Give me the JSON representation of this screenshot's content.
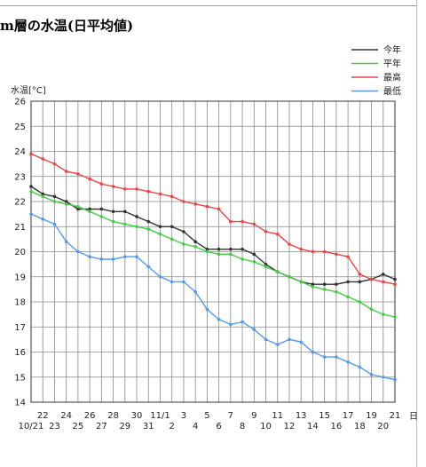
{
  "page": {
    "title": "m層の水温(日平均値)"
  },
  "chart_data": {
    "type": "line",
    "ylabel": "水温[°C]",
    "xlabel": "日",
    "ylim": [
      14,
      26
    ],
    "yticks": [
      14,
      15,
      16,
      17,
      18,
      19,
      20,
      21,
      22,
      23,
      24,
      25,
      26
    ],
    "grid": true,
    "legend_position": "top-right",
    "categories": [
      "10/21",
      "22",
      "23",
      "24",
      "25",
      "26",
      "27",
      "28",
      "29",
      "30",
      "31",
      "11/1",
      "2",
      "3",
      "4",
      "5",
      "6",
      "7",
      "8",
      "9",
      "10",
      "11",
      "12",
      "13",
      "14",
      "15",
      "16",
      "17",
      "18",
      "19",
      "20",
      "21"
    ],
    "series": [
      {
        "name": "今年",
        "color": "#333333",
        "values": [
          22.6,
          22.3,
          22.2,
          22.0,
          21.7,
          21.7,
          21.7,
          21.6,
          21.6,
          21.4,
          21.2,
          21.0,
          21.0,
          20.8,
          20.4,
          20.1,
          20.1,
          20.1,
          20.1,
          19.9,
          19.5,
          19.2,
          19.0,
          18.8,
          18.7,
          18.7,
          18.7,
          18.8,
          18.8,
          18.9,
          19.1,
          18.9
        ]
      },
      {
        "name": "平年",
        "color": "#44cc44",
        "values": [
          22.4,
          22.2,
          22.0,
          21.9,
          21.8,
          21.6,
          21.4,
          21.2,
          21.1,
          21.0,
          20.9,
          20.7,
          20.5,
          20.3,
          20.2,
          20.0,
          19.9,
          19.9,
          19.7,
          19.6,
          19.4,
          19.2,
          19.0,
          18.8,
          18.6,
          18.5,
          18.4,
          18.2,
          18.0,
          17.7,
          17.5,
          17.4
        ]
      },
      {
        "name": "最高",
        "color": "#ee4444",
        "values": [
          23.9,
          23.7,
          23.5,
          23.2,
          23.1,
          22.9,
          22.7,
          22.6,
          22.5,
          22.5,
          22.4,
          22.3,
          22.2,
          22.0,
          21.9,
          21.8,
          21.7,
          21.2,
          21.2,
          21.1,
          20.8,
          20.7,
          20.3,
          20.1,
          20.0,
          20.0,
          19.9,
          19.8,
          19.1,
          18.9,
          18.8,
          18.7
        ]
      },
      {
        "name": "最低",
        "color": "#5599ee",
        "values": [
          21.5,
          21.3,
          21.1,
          20.4,
          20.0,
          19.8,
          19.7,
          19.7,
          19.8,
          19.8,
          19.4,
          19.0,
          18.8,
          18.8,
          18.4,
          17.7,
          17.3,
          17.1,
          17.2,
          16.9,
          16.5,
          16.3,
          16.5,
          16.4,
          16.0,
          15.8,
          15.8,
          15.6,
          15.4,
          15.1,
          15.0,
          14.9
        ]
      }
    ]
  }
}
